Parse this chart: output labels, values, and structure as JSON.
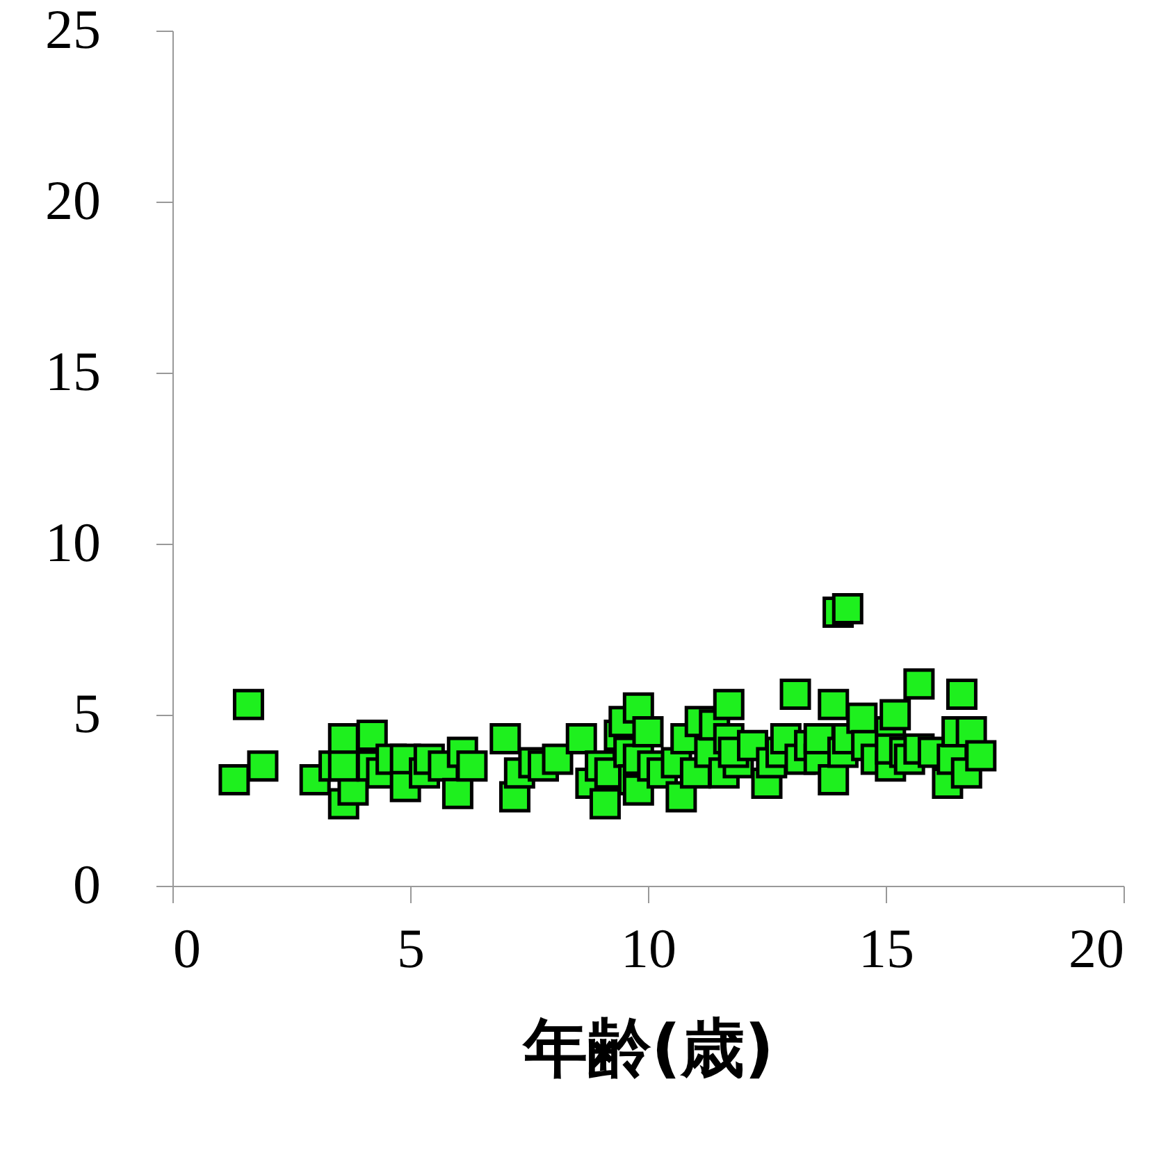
{
  "chart_data": {
    "type": "scatter",
    "xlabel": "年齢(歳)",
    "xlim": [
      0,
      20
    ],
    "xticks": [
      0,
      5,
      10,
      15,
      20
    ],
    "ylim": [
      0,
      25
    ],
    "yticks": [
      0,
      5,
      10,
      15,
      20,
      25
    ],
    "grid": false,
    "marker": "square",
    "series": [
      {
        "color": "#1ef01e",
        "x": [
          1.3,
          1.6,
          1.9,
          3.0,
          3.4,
          3.6,
          3.6,
          3.8,
          3.6,
          4.2,
          4.2,
          4.4,
          4.6,
          4.9,
          4.9,
          5.3,
          5.4,
          5.7,
          6.0,
          6.1,
          6.3,
          7.0,
          7.2,
          7.3,
          7.6,
          7.8,
          8.1,
          8.6,
          8.8,
          9.0,
          9.1,
          9.2,
          9.4,
          9.5,
          9.6,
          9.7,
          9.8,
          9.8,
          9.8,
          10.0,
          10.1,
          10.3,
          10.6,
          10.7,
          10.8,
          11.0,
          11.1,
          11.3,
          11.4,
          11.6,
          11.7,
          11.7,
          11.9,
          11.8,
          12.2,
          12.5,
          12.6,
          12.8,
          12.9,
          13.1,
          13.2,
          13.4,
          13.6,
          13.6,
          13.9,
          13.9,
          14.0,
          14.2,
          14.1,
          14.2,
          14.5,
          14.6,
          14.8,
          15.1,
          15.1,
          15.1,
          15.2,
          15.4,
          15.5,
          15.7,
          15.7,
          16.0,
          16.3,
          16.4,
          16.5,
          16.6,
          16.7,
          16.8,
          17.0
        ],
        "values": [
          3.1,
          5.3,
          3.5,
          3.1,
          3.5,
          4.3,
          2.4,
          2.8,
          3.5,
          4.4,
          3.5,
          3.3,
          3.7,
          3.7,
          2.9,
          3.3,
          3.7,
          3.5,
          2.7,
          3.9,
          3.5,
          4.3,
          2.6,
          3.3,
          3.6,
          3.5,
          3.7,
          4.3,
          3.0,
          3.5,
          2.4,
          3.3,
          4.4,
          4.8,
          3.9,
          3.1,
          5.2,
          3.7,
          2.8,
          4.5,
          3.5,
          3.3,
          3.6,
          2.6,
          4.3,
          3.3,
          4.8,
          3.9,
          4.7,
          3.3,
          5.3,
          4.3,
          3.6,
          3.9,
          4.1,
          3.0,
          3.6,
          3.9,
          4.3,
          5.6,
          3.7,
          4.1,
          3.7,
          4.3,
          3.1,
          5.3,
          8.0,
          8.1,
          3.9,
          4.3,
          4.9,
          4.1,
          3.7,
          3.5,
          4.5,
          4.0,
          5.0,
          3.9,
          3.7,
          4.0,
          5.9,
          3.9,
          3.0,
          3.7,
          4.5,
          5.6,
          3.3,
          4.5,
          3.8
        ]
      }
    ]
  }
}
